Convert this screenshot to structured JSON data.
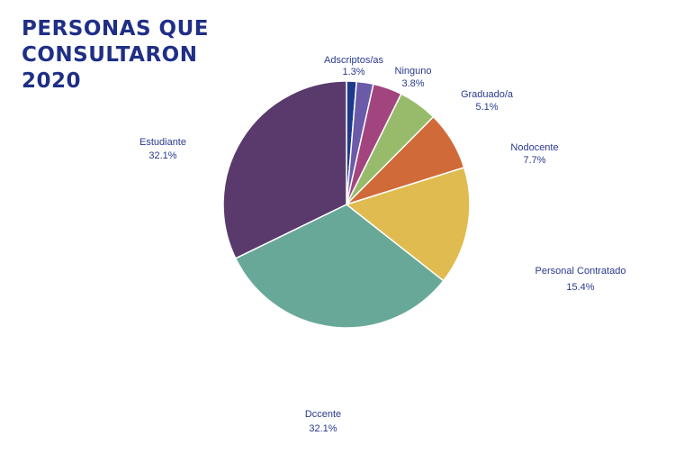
{
  "title_lines": [
    "PERSONAS QUE",
    "CONSULTARON",
    "2020"
  ],
  "chart_data": {
    "type": "pie",
    "title": "PERSONAS QUE CONSULTARON 2020",
    "slices": [
      {
        "label": "Adscriptos/as",
        "pct_label": "1.3%",
        "value": 1.3,
        "color": "#1f3a8a"
      },
      {
        "label": "",
        "pct_label": "",
        "value": 2.2,
        "color": "#6a5aa8"
      },
      {
        "label": "Ninguno",
        "pct_label": "3.8%",
        "value": 3.8,
        "color": "#a2457f"
      },
      {
        "label": "Graduado/a",
        "pct_label": "5.1%",
        "value": 5.1,
        "color": "#97bb6b"
      },
      {
        "label": "Nodocente",
        "pct_label": "7.7%",
        "value": 7.7,
        "color": "#d06a38"
      },
      {
        "label": "Personal Contratado",
        "pct_label": "15.4%",
        "value": 15.4,
        "color": "#e0bb4f"
      },
      {
        "label": "Dccente",
        "pct_label": "32.1%",
        "value": 32.1,
        "color": "#68a899"
      },
      {
        "label": "Estudiante",
        "pct_label": "32.1%",
        "value": 32.1,
        "color": "#5a3a6c"
      }
    ]
  }
}
